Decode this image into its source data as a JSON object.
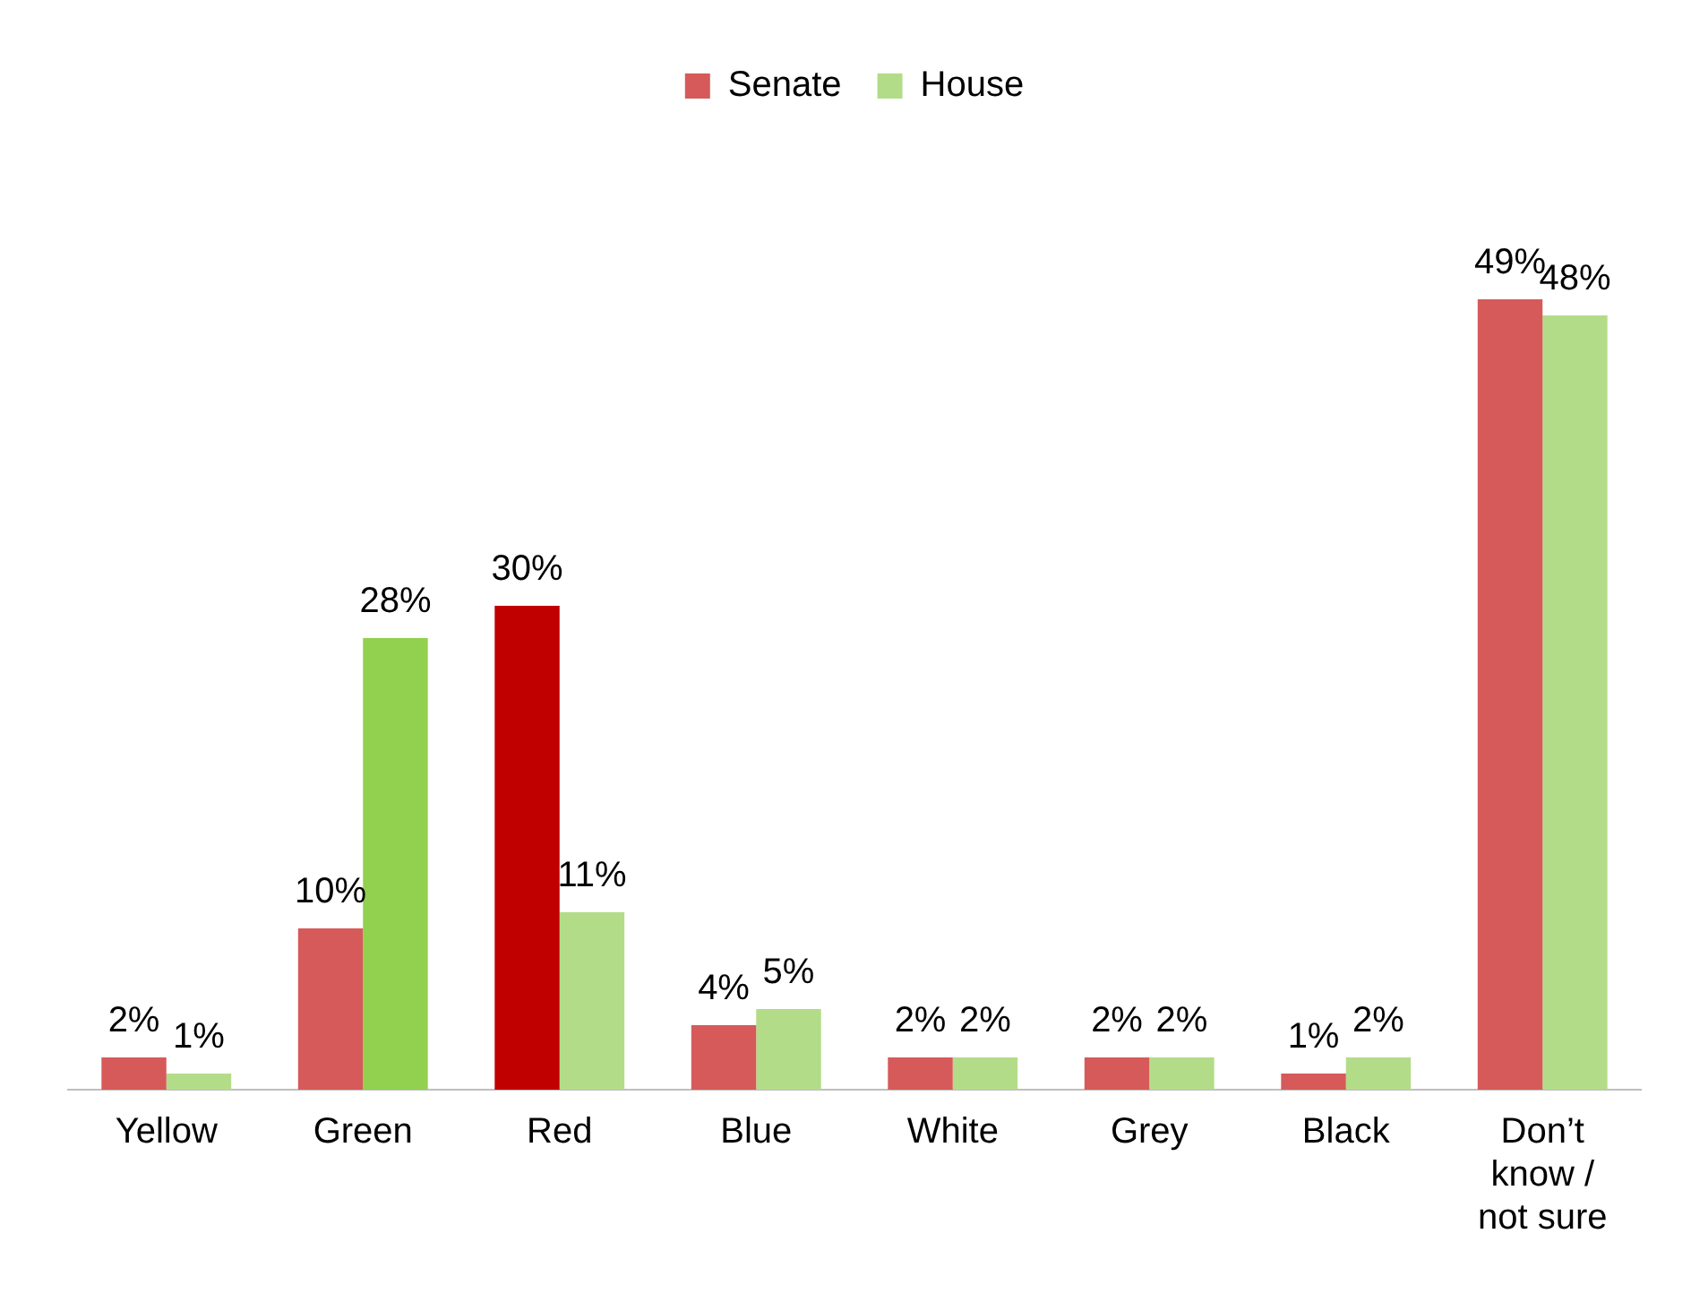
{
  "chart_data": {
    "type": "bar",
    "categories": [
      "Yellow",
      "Green",
      "Red",
      "Blue",
      "White",
      "Grey",
      "Black",
      "Don’t know / not sure"
    ],
    "series": [
      {
        "name": "Senate",
        "color": "#d65a5a",
        "colors": [
          "#d65a5a",
          "#d65a5a",
          "#c00000",
          "#d65a5a",
          "#d65a5a",
          "#d65a5a",
          "#d65a5a",
          "#d65a5a"
        ],
        "values": [
          2,
          10,
          30,
          4,
          2,
          2,
          1,
          49
        ],
        "value_labels": [
          "2%",
          "10%",
          "30%",
          "4%",
          "2%",
          "2%",
          "1%",
          "49%"
        ]
      },
      {
        "name": "House",
        "color": "#b3dc88",
        "colors": [
          "#b3dc88",
          "#92d050",
          "#b3dc88",
          "#b3dc88",
          "#b3dc88",
          "#b3dc88",
          "#b3dc88",
          "#b3dc88"
        ],
        "values": [
          1,
          28,
          11,
          5,
          2,
          2,
          2,
          48
        ],
        "value_labels": [
          "1%",
          "28%",
          "11%",
          "5%",
          "2%",
          "2%",
          "2%",
          "48%"
        ]
      }
    ],
    "legend": "top",
    "grid": false,
    "tick_labels": "x"
  }
}
